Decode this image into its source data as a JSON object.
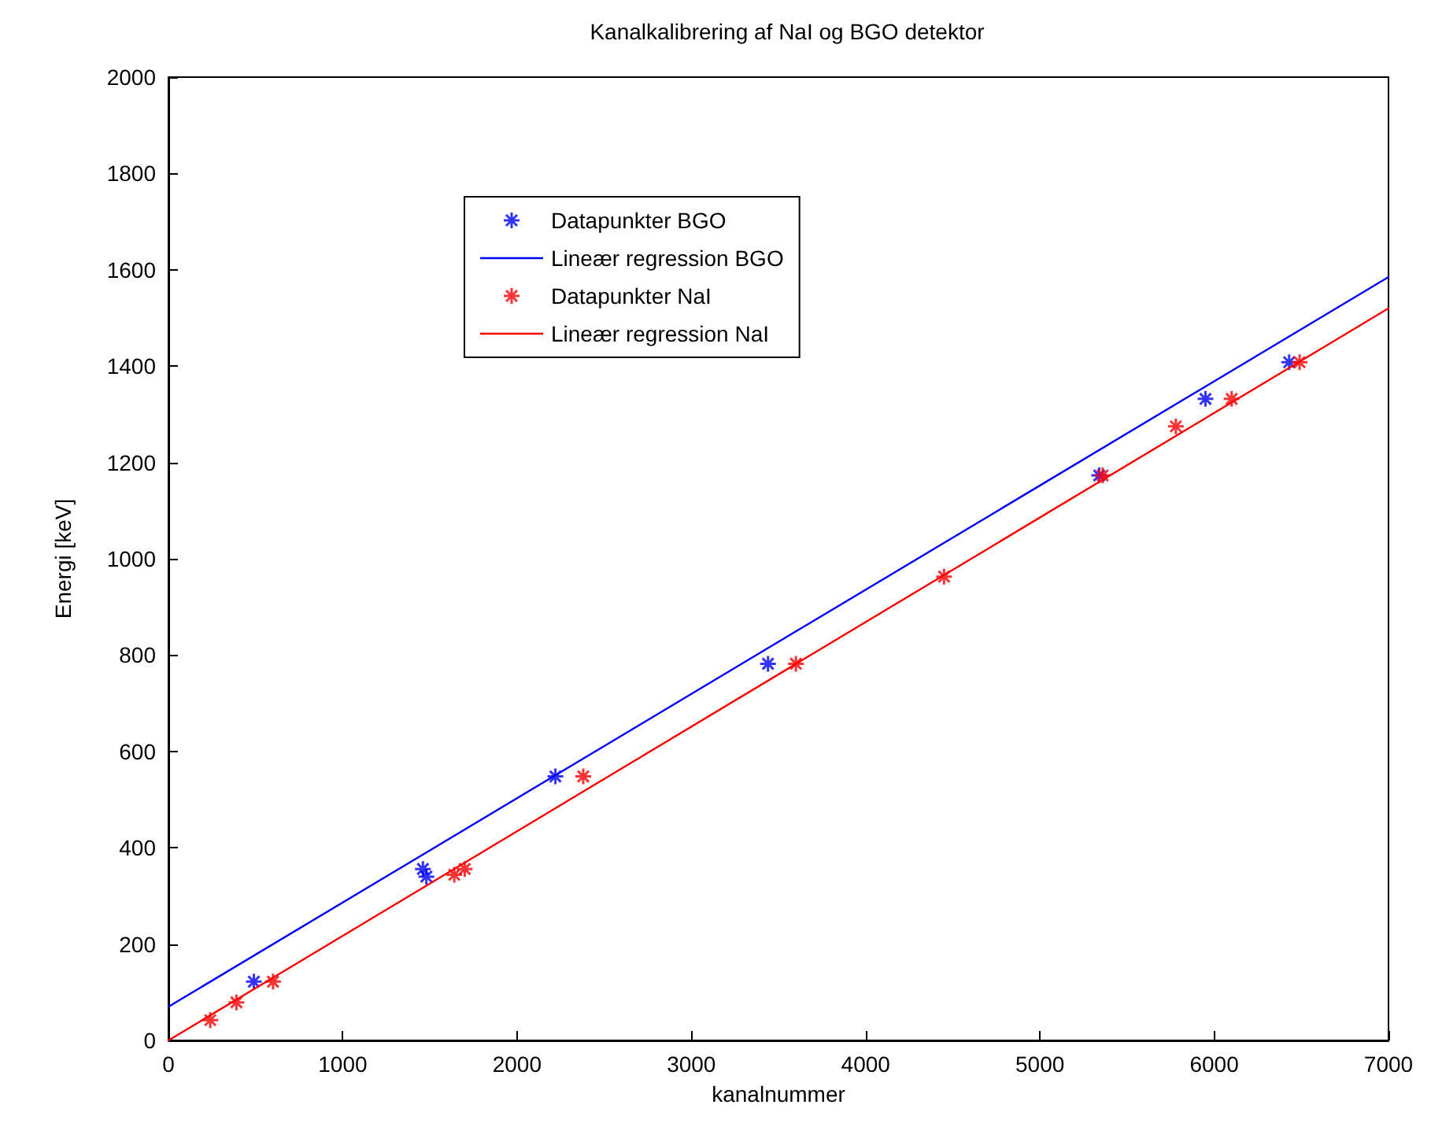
{
  "chart_data": {
    "type": "scatter",
    "title": "Kanalkalibrering af NaI og BGO detektor",
    "xlabel": "kanalnummer",
    "ylabel": "Energi [keV]",
    "xlim": [
      0,
      7000
    ],
    "xticks": [
      0,
      1000,
      2000,
      3000,
      4000,
      5000,
      6000,
      7000
    ],
    "ylim": [
      0,
      2000
    ],
    "yticks": [
      0,
      200,
      400,
      600,
      800,
      1000,
      1200,
      1400,
      1600,
      1800,
      2000
    ],
    "grid": false,
    "legend": "top",
    "marker": "cross",
    "series": [
      {
        "name": "Datapunkter BGO",
        "color": "#0000ff",
        "x": [
          490,
          1460,
          1480,
          2220,
          3440,
          5340,
          5950,
          6430
        ],
        "values": [
          122,
          356,
          340,
          548,
          782,
          1173,
          1332,
          1408
        ]
      },
      {
        "name": "Lineær regression BGO",
        "type": "line",
        "color": "#0000ff",
        "marker": "none",
        "line_style": "solid",
        "x": [
          0,
          7000
        ],
        "values": [
          70,
          1585
        ]
      },
      {
        "name": "Datapunkter NaI",
        "color": "#ff0000",
        "x": [
          240,
          390,
          600,
          1640,
          1700,
          2380,
          3600,
          4450,
          5360,
          5780,
          6100,
          6490
        ],
        "values": [
          42,
          79,
          122,
          344,
          356,
          548,
          782,
          963,
          1173,
          1275,
          1332,
          1408
        ]
      },
      {
        "name": "Lineær regression NaI",
        "type": "line",
        "color": "#ff0000",
        "marker": "none",
        "line_style": "solid",
        "x": [
          0,
          7000
        ],
        "values": [
          0,
          1520
        ]
      }
    ]
  }
}
